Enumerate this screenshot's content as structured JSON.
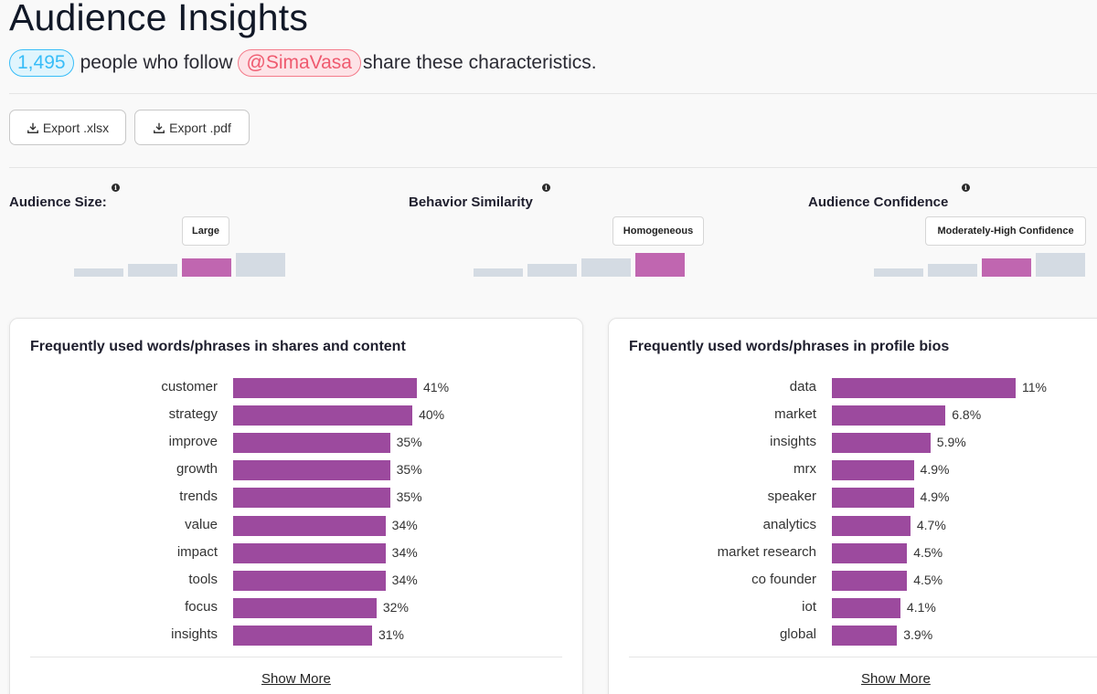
{
  "header": {
    "title": "Audience Insights",
    "count": "1,495",
    "text_before": "people who follow",
    "handle": "@SimaVasa",
    "text_after": "share these characteristics."
  },
  "toolbar": {
    "export_xlsx_label": "Export .xlsx",
    "export_pdf_label": "Export .pdf"
  },
  "metrics": [
    {
      "label": "Audience Size:",
      "info": "i",
      "tooltip": "Large",
      "levels": 4,
      "active_level": 3
    },
    {
      "label": "Behavior Similarity",
      "info": "i",
      "tooltip": "Homogeneous",
      "levels": 4,
      "active_level": 4
    },
    {
      "label": "Audience Confidence",
      "info": "i",
      "tooltip": "Moderately-High Confidence",
      "levels": 4,
      "active_level": 3
    }
  ],
  "cards": [
    {
      "title": "Frequently used words/phrases in shares and content",
      "show_more": "Show More",
      "chart_data": {
        "type": "bar",
        "orientation": "horizontal",
        "categories": [
          "customer",
          "strategy",
          "improve",
          "growth",
          "trends",
          "value",
          "impact",
          "tools",
          "focus",
          "insights"
        ],
        "values": [
          41,
          40,
          35,
          35,
          35,
          34,
          34,
          34,
          32,
          31
        ],
        "value_labels": [
          "41%",
          "40%",
          "35%",
          "35%",
          "35%",
          "34%",
          "34%",
          "34%",
          "32%",
          "31%"
        ],
        "unit": "%",
        "color": "#9c4a9e"
      }
    },
    {
      "title": "Frequently used words/phrases in profile bios",
      "show_more": "Show More",
      "chart_data": {
        "type": "bar",
        "orientation": "horizontal",
        "categories": [
          "data",
          "market",
          "insights",
          "mrx",
          "speaker",
          "analytics",
          "market research",
          "co founder",
          "iot",
          "global"
        ],
        "values": [
          11,
          6.8,
          5.9,
          4.9,
          4.9,
          4.7,
          4.5,
          4.5,
          4.1,
          3.9
        ],
        "value_labels": [
          "11%",
          "6.8%",
          "5.9%",
          "4.9%",
          "4.9%",
          "4.7%",
          "4.5%",
          "4.5%",
          "4.1%",
          "3.9%"
        ],
        "unit": "%",
        "color": "#9c4a9e"
      }
    }
  ]
}
